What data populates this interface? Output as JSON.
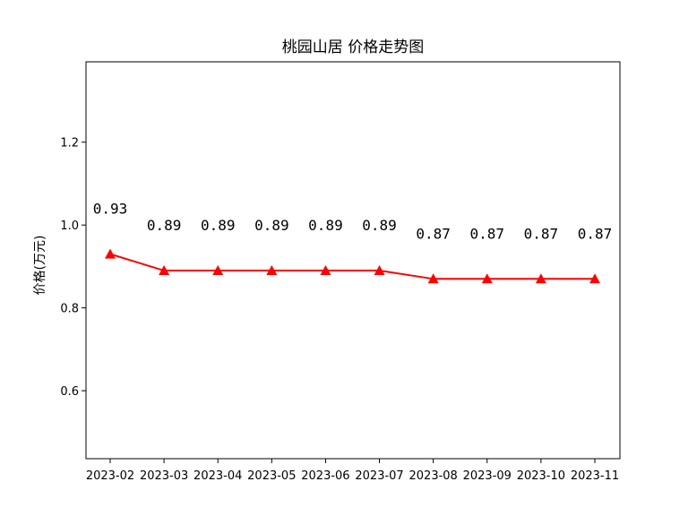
{
  "chart_data": {
    "type": "line",
    "title": "桃园山居 价格走势图",
    "xlabel": "",
    "ylabel": "价格(万元)",
    "categories": [
      "2023-02",
      "2023-03",
      "2023-04",
      "2023-05",
      "2023-06",
      "2023-07",
      "2023-08",
      "2023-09",
      "2023-10",
      "2023-11"
    ],
    "series": [
      {
        "values": [
          0.93,
          0.89,
          0.89,
          0.89,
          0.89,
          0.89,
          0.87,
          0.87,
          0.87,
          0.87
        ]
      }
    ],
    "data_labels": [
      "0.93",
      "0.89",
      "0.89",
      "0.89",
      "0.89",
      "0.89",
      "0.87",
      "0.87",
      "0.87",
      "0.87"
    ],
    "ylim": [
      0.436,
      1.394
    ],
    "yticks": [
      0.6,
      0.8,
      1.0,
      1.2
    ],
    "ytick_labels": [
      "0.6",
      "0.8",
      "1.0",
      "1.2"
    ],
    "grid": false,
    "line_color": "#ff0000",
    "marker": "triangle"
  }
}
